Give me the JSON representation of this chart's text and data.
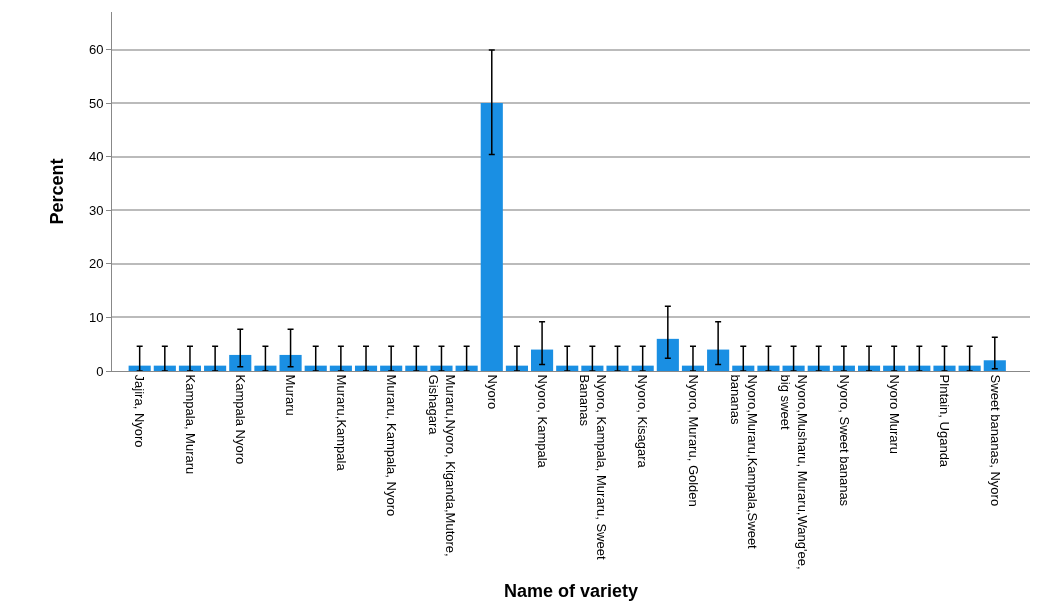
{
  "chart_data": {
    "type": "bar",
    "xlabel": "Name of variety",
    "ylabel": "Percent",
    "categories": [
      "Jajira, Nyoro",
      null,
      "Kampala, Muraru",
      null,
      "Kampala Nyoro",
      null,
      "Muraru",
      null,
      "Muraru,Kampala",
      null,
      "Muraru, Kampala, Nyoro",
      null,
      "Muraru,Nyoro, Kiganda,Mutore, Gishagara",
      null,
      "Nyoro",
      null,
      "Nyoro, Kampala",
      null,
      "Nyoro, Kampala, Muraru, Sweet Bananas",
      null,
      "Nyoro, Kisagara",
      null,
      "Nyoro, Muraru, Golden",
      null,
      "Nyoro,Muraru,Kampala,Sweet bananas",
      null,
      "Nyoro,Musharu, Muraru,Wang'ee, big sweet",
      null,
      "Nyoro, Sweet bananas",
      null,
      "Nyoro Muraru",
      null,
      "Plntain, Uganda",
      null,
      "Sweet bananas, Nyoro"
    ],
    "values": [
      1,
      1,
      1,
      1,
      3,
      1,
      3,
      1,
      1,
      1,
      1,
      1,
      1,
      1,
      50,
      1,
      4,
      1,
      1,
      1,
      1,
      6,
      1,
      4,
      1,
      1,
      1,
      1,
      1,
      1,
      1,
      1,
      1,
      1,
      2
    ],
    "errors": [
      [
        0,
        4.6
      ],
      [
        0,
        4.6
      ],
      [
        0,
        4.6
      ],
      [
        0,
        4.6
      ],
      [
        0.8,
        7.8
      ],
      [
        0,
        4.6
      ],
      [
        0.8,
        7.8
      ],
      [
        0,
        4.6
      ],
      [
        0,
        4.6
      ],
      [
        0,
        4.6
      ],
      [
        0,
        4.6
      ],
      [
        0,
        4.6
      ],
      [
        0,
        4.6
      ],
      [
        0,
        4.6
      ],
      [
        40.4,
        59.9
      ],
      [
        0,
        4.6
      ],
      [
        1.2,
        9.2
      ],
      [
        0,
        4.6
      ],
      [
        0,
        4.6
      ],
      [
        0,
        4.6
      ],
      [
        0,
        4.6
      ],
      [
        2.4,
        12.1
      ],
      [
        0,
        4.6
      ],
      [
        1.2,
        9.2
      ],
      [
        0,
        4.6
      ],
      [
        0,
        4.6
      ],
      [
        0,
        4.6
      ],
      [
        0,
        4.6
      ],
      [
        0,
        4.6
      ],
      [
        0,
        4.6
      ],
      [
        0,
        4.6
      ],
      [
        0,
        4.6
      ],
      [
        0,
        4.6
      ],
      [
        0,
        4.6
      ],
      [
        0.4,
        6.3
      ]
    ],
    "color": "#1a8fe3",
    "ylim": [
      0,
      67
    ],
    "yticks": [
      0,
      10,
      20,
      30,
      40,
      50,
      60
    ],
    "grid": "y"
  }
}
